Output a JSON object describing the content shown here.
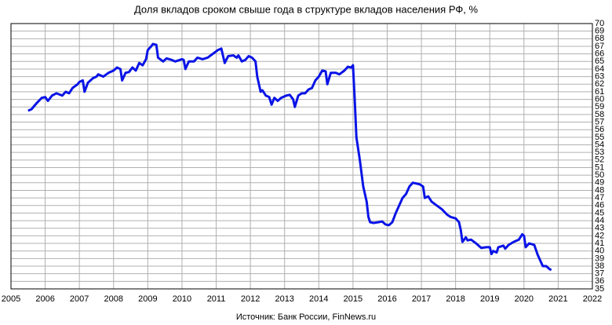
{
  "chart_data": {
    "type": "line",
    "title": "Доля вкладов сроком свыше года в структуре вкладов населения РФ, %",
    "source": "Источник: Банк России, FinNews.ru",
    "grid": true,
    "xlim": [
      2005,
      2022
    ],
    "xticks": [
      2005,
      2006,
      2007,
      2008,
      2009,
      2010,
      2011,
      2012,
      2013,
      2014,
      2015,
      2016,
      2017,
      2018,
      2019,
      2020,
      2021,
      2022
    ],
    "ylim": [
      35,
      70
    ],
    "yticks": [
      35,
      36,
      37,
      38,
      39,
      40,
      41,
      42,
      43,
      44,
      45,
      46,
      47,
      48,
      49,
      50,
      51,
      52,
      53,
      54,
      55,
      56,
      57,
      58,
      59,
      60,
      61,
      62,
      63,
      64,
      65,
      66,
      67,
      68,
      69,
      70
    ],
    "series": [
      {
        "color": "#0a14e6",
        "x": [
          2005.5,
          2005.6,
          2005.75,
          2005.9,
          2006.0,
          2006.08,
          2006.2,
          2006.33,
          2006.5,
          2006.6,
          2006.7,
          2006.8,
          2006.95,
          2007.0,
          2007.1,
          2007.15,
          2007.25,
          2007.4,
          2007.5,
          2007.55,
          2007.7,
          2007.85,
          2008.0,
          2008.1,
          2008.2,
          2008.25,
          2008.35,
          2008.45,
          2008.55,
          2008.65,
          2008.75,
          2008.85,
          2008.95,
          2009.0,
          2009.1,
          2009.15,
          2009.25,
          2009.3,
          2009.45,
          2009.55,
          2009.7,
          2009.8,
          2010.0,
          2010.05,
          2010.1,
          2010.2,
          2010.35,
          2010.45,
          2010.6,
          2010.75,
          2010.9,
          2011.05,
          2011.15,
          2011.25,
          2011.35,
          2011.5,
          2011.6,
          2011.65,
          2011.75,
          2011.85,
          2011.95,
          2012.05,
          2012.15,
          2012.2,
          2012.3,
          2012.35,
          2012.45,
          2012.55,
          2012.62,
          2012.7,
          2012.8,
          2012.9,
          2013.05,
          2013.15,
          2013.25,
          2013.3,
          2013.4,
          2013.5,
          2013.6,
          2013.7,
          2013.8,
          2013.9,
          2014.0,
          2014.1,
          2014.2,
          2014.25,
          2014.35,
          2014.5,
          2014.6,
          2014.75,
          2014.85,
          2014.95,
          2015.0,
          2015.05,
          2015.1,
          2015.2,
          2015.3,
          2015.4,
          2015.45,
          2015.5,
          2015.6,
          2015.75,
          2015.85,
          2015.95,
          2016.05,
          2016.15,
          2016.25,
          2016.35,
          2016.45,
          2016.55,
          2016.65,
          2016.75,
          2016.85,
          2016.95,
          2017.05,
          2017.1,
          2017.2,
          2017.3,
          2017.45,
          2017.6,
          2017.75,
          2017.85,
          2018.0,
          2018.1,
          2018.15,
          2018.2,
          2018.3,
          2018.35,
          2018.45,
          2018.6,
          2018.75,
          2018.9,
          2019.0,
          2019.05,
          2019.1,
          2019.2,
          2019.25,
          2019.4,
          2019.45,
          2019.55,
          2019.7,
          2019.85,
          2019.95,
          2020.0,
          2020.05,
          2020.15,
          2020.3,
          2020.4,
          2020.5,
          2020.55,
          2020.65,
          2020.75,
          2020.8
        ],
        "values": [
          58.5,
          58.7,
          59.5,
          60.2,
          60.3,
          59.8,
          60.5,
          60.8,
          60.5,
          61.0,
          60.8,
          61.5,
          62.0,
          62.3,
          62.5,
          61.0,
          62.2,
          62.8,
          63.0,
          63.3,
          63.0,
          63.5,
          63.8,
          64.2,
          64.0,
          62.5,
          63.5,
          63.6,
          64.2,
          63.8,
          64.8,
          64.5,
          65.3,
          66.5,
          67.0,
          67.3,
          67.2,
          65.5,
          65.0,
          65.4,
          65.2,
          65.0,
          65.3,
          65.2,
          64.0,
          65.0,
          65.0,
          65.5,
          65.3,
          65.5,
          66.0,
          66.5,
          66.7,
          64.8,
          65.7,
          65.8,
          65.5,
          65.8,
          65.0,
          65.2,
          65.7,
          65.5,
          65.0,
          63.0,
          61.0,
          61.2,
          60.5,
          60.3,
          59.3,
          60.2,
          59.8,
          60.2,
          60.5,
          60.6,
          60.0,
          59.0,
          60.5,
          60.8,
          60.8,
          61.3,
          61.5,
          62.5,
          63.0,
          63.8,
          63.7,
          62.0,
          63.5,
          63.5,
          63.3,
          63.8,
          64.3,
          64.2,
          64.5,
          60.0,
          55.0,
          52.0,
          48.5,
          46.5,
          44.5,
          43.8,
          43.7,
          43.8,
          43.9,
          43.5,
          43.4,
          43.8,
          45.0,
          46.0,
          47.0,
          47.5,
          48.5,
          49.0,
          48.9,
          48.8,
          48.5,
          47.0,
          47.2,
          46.5,
          46.0,
          45.5,
          44.8,
          44.5,
          44.3,
          43.8,
          42.8,
          41.2,
          41.8,
          41.4,
          41.5,
          41.0,
          40.4,
          40.5,
          40.5,
          39.6,
          40.0,
          39.8,
          40.5,
          40.7,
          40.3,
          40.8,
          41.2,
          41.5,
          42.2,
          42.0,
          40.5,
          41.0,
          40.8,
          39.5,
          38.5,
          38.0,
          38.0,
          37.6,
          37.5
        ]
      }
    ]
  }
}
